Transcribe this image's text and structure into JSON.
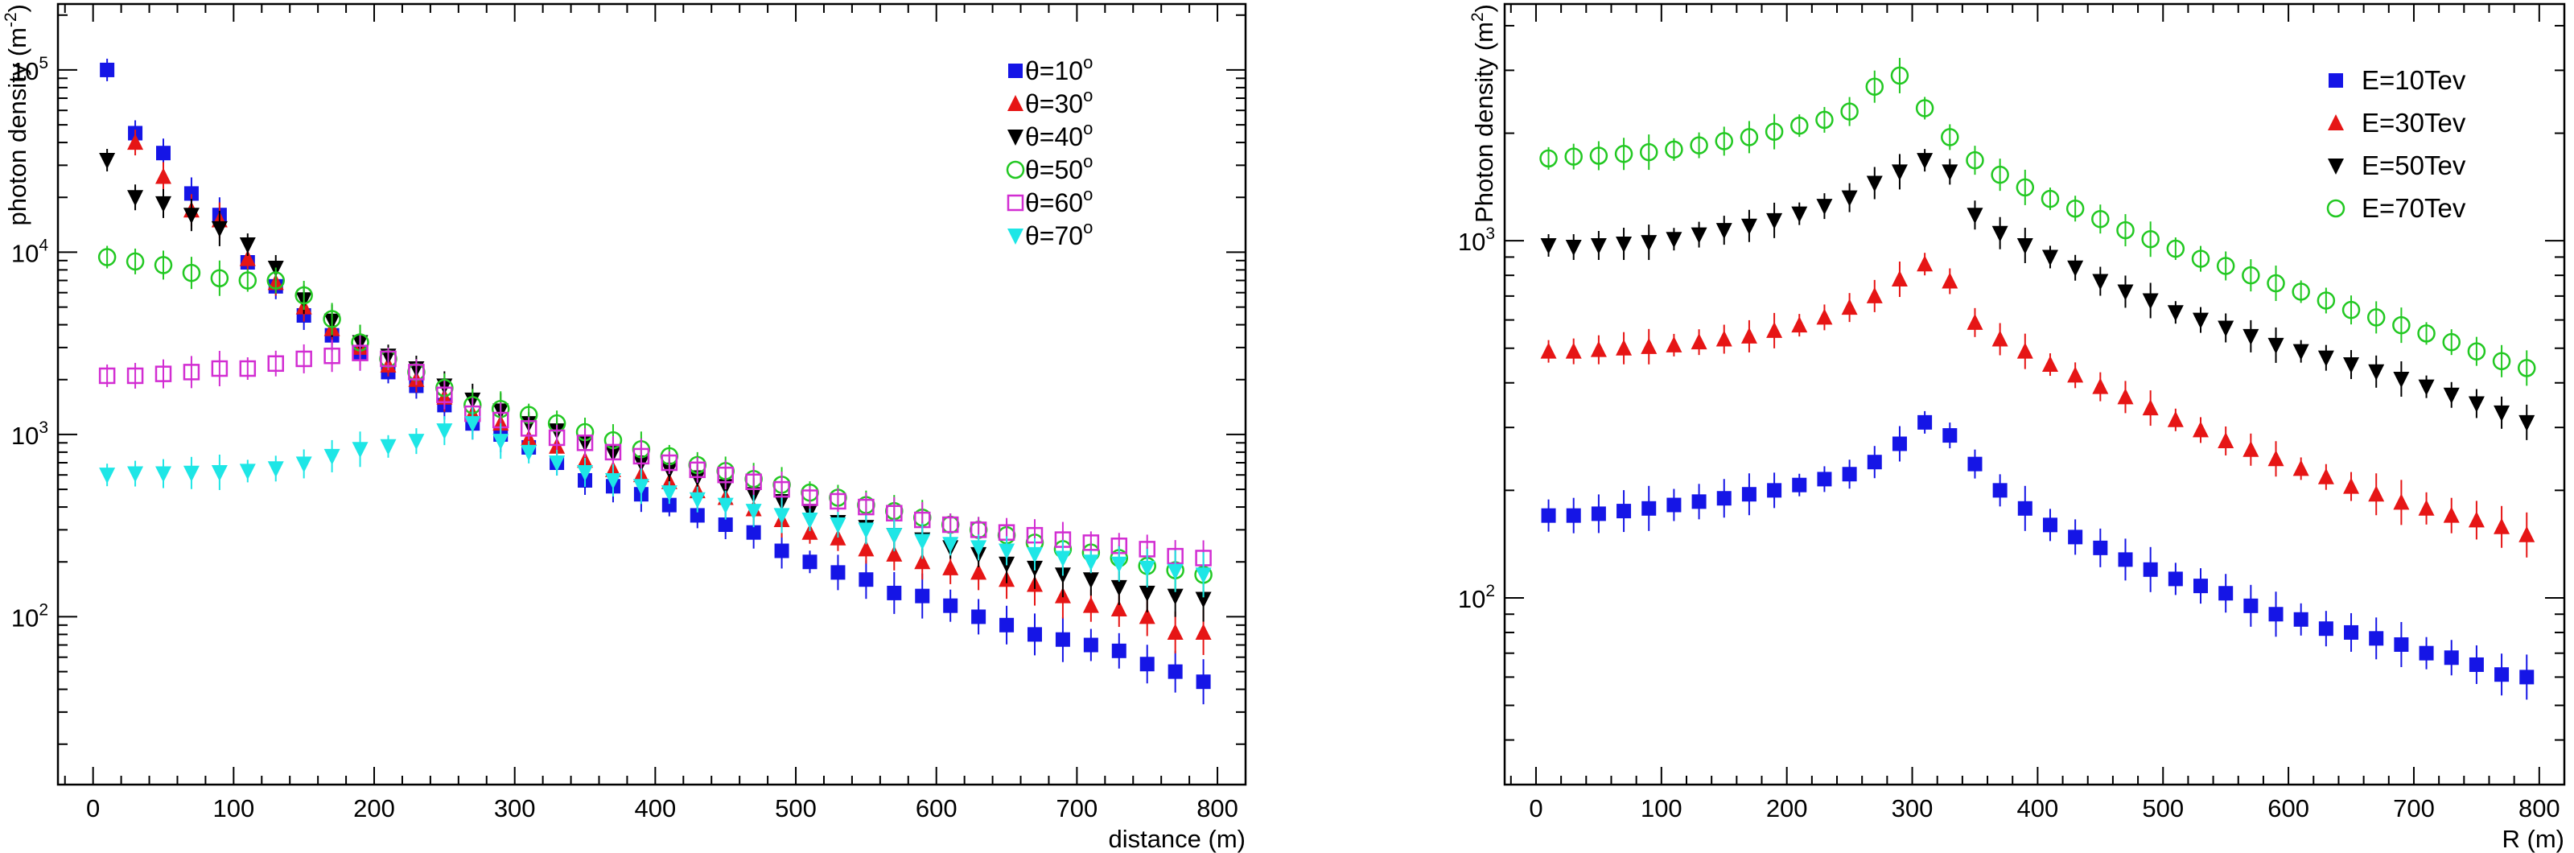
{
  "chart_data": [
    {
      "type": "scatter",
      "xlabel": "distance (m)",
      "ylabel": "photon density (m",
      "ylabel_sup": "-2",
      "ylabel_close": ")",
      "xlim": [
        -25,
        820
      ],
      "ylim": [
        12,
        230000
      ],
      "yscale": "log",
      "xticks": [
        0,
        100,
        200,
        300,
        400,
        500,
        600,
        700,
        800
      ],
      "ytick_labels": [
        {
          "base": "10",
          "exp": "2",
          "value": 100
        },
        {
          "base": "10",
          "exp": "3",
          "value": 1000
        },
        {
          "base": "10",
          "exp": "4",
          "value": 10000
        },
        {
          "base": "10",
          "exp": "5",
          "value": 100000
        }
      ],
      "legend_position": "top-right",
      "x": [
        10,
        30,
        50,
        70,
        90,
        110,
        130,
        150,
        170,
        190,
        210,
        230,
        250,
        270,
        290,
        310,
        330,
        350,
        370,
        390,
        410,
        430,
        450,
        470,
        490,
        510,
        530,
        550,
        570,
        590,
        610,
        630,
        650,
        670,
        690,
        710,
        730,
        750,
        770,
        790
      ],
      "series": [
        {
          "label_prefix": "θ=",
          "label_value": "10",
          "label_sup": "o",
          "marker": "square-filled",
          "color": "#1515e6",
          "values": [
            100000,
            45000,
            35000,
            21000,
            16000,
            8800,
            6500,
            4500,
            3500,
            2800,
            2200,
            1850,
            1450,
            1150,
            1000,
            850,
            700,
            560,
            520,
            470,
            410,
            360,
            320,
            290,
            230,
            200,
            175,
            160,
            135,
            130,
            115,
            100,
            90,
            80,
            75,
            70,
            65,
            55,
            50,
            44
          ]
        },
        {
          "label_prefix": "θ=",
          "label_value": "30",
          "label_sup": "o",
          "marker": "triangle-up-filled",
          "color": "#e61515",
          "values": [
            null,
            40000,
            26000,
            17000,
            15000,
            9200,
            6800,
            5000,
            3800,
            3000,
            2400,
            2000,
            1600,
            1300,
            1150,
            950,
            860,
            720,
            640,
            600,
            550,
            490,
            450,
            390,
            340,
            290,
            270,
            235,
            220,
            200,
            185,
            175,
            160,
            150,
            130,
            115,
            110,
            100,
            82,
            82
          ]
        },
        {
          "label_prefix": "θ=",
          "label_value": "40",
          "label_sup": "o",
          "marker": "triangle-down-filled",
          "color": "#000000",
          "values": [
            32000,
            20000,
            18500,
            16000,
            13500,
            11000,
            8200,
            5500,
            4200,
            3200,
            2700,
            2300,
            1850,
            1550,
            1350,
            1150,
            1050,
            900,
            790,
            700,
            640,
            580,
            520,
            470,
            430,
            380,
            330,
            310,
            280,
            265,
            240,
            220,
            195,
            185,
            170,
            160,
            145,
            135,
            130,
            125
          ]
        },
        {
          "label_prefix": "θ=",
          "label_value": "50",
          "label_sup": "o",
          "marker": "circle-open",
          "color": "#22c822",
          "values": [
            9400,
            8900,
            8500,
            7700,
            7200,
            7000,
            7000,
            5800,
            4300,
            3200,
            2600,
            2200,
            1800,
            1450,
            1380,
            1280,
            1150,
            1030,
            930,
            830,
            760,
            680,
            630,
            570,
            530,
            480,
            450,
            410,
            380,
            350,
            320,
            300,
            280,
            255,
            235,
            225,
            210,
            190,
            180,
            170
          ]
        },
        {
          "label_prefix": "θ=",
          "label_value": "60",
          "label_sup": "o",
          "marker": "square-open",
          "color": "#d22dd2",
          "values": [
            2100,
            2100,
            2150,
            2200,
            2300,
            2300,
            2450,
            2600,
            2700,
            2800,
            2600,
            2200,
            1650,
            1300,
            1200,
            1080,
            960,
            900,
            800,
            760,
            700,
            640,
            600,
            550,
            500,
            450,
            430,
            400,
            370,
            340,
            320,
            300,
            290,
            280,
            265,
            255,
            245,
            235,
            215,
            210
          ]
        },
        {
          "label_prefix": "θ=",
          "label_value": "70",
          "label_sup": "o",
          "marker": "triangle-down-filled",
          "color": "#1ee6e6",
          "values": [
            600,
            610,
            610,
            615,
            620,
            630,
            650,
            690,
            760,
            830,
            860,
            920,
            1050,
            1150,
            920,
            800,
            700,
            620,
            560,
            520,
            480,
            440,
            410,
            380,
            360,
            340,
            320,
            300,
            280,
            260,
            250,
            240,
            230,
            220,
            210,
            200,
            195,
            185,
            178,
            170
          ]
        }
      ]
    },
    {
      "type": "scatter",
      "xlabel": "R (m)",
      "ylabel": "Photon density (m",
      "ylabel_sup": "2",
      "ylabel_close": ")",
      "xlim": [
        -25,
        820
      ],
      "ylim": [
        30,
        4600
      ],
      "yscale": "log",
      "xticks": [
        0,
        100,
        200,
        300,
        400,
        500,
        600,
        700,
        800
      ],
      "ytick_labels": [
        {
          "base": "10",
          "exp": "2",
          "value": 100
        },
        {
          "base": "10",
          "exp": "3",
          "value": 1000
        }
      ],
      "legend_position": "top-right",
      "x": [
        10,
        30,
        50,
        70,
        90,
        110,
        130,
        150,
        170,
        190,
        210,
        230,
        250,
        270,
        290,
        310,
        330,
        350,
        370,
        390,
        410,
        430,
        450,
        470,
        490,
        510,
        530,
        550,
        570,
        590,
        610,
        630,
        650,
        670,
        690,
        710,
        730,
        750,
        770,
        790
      ],
      "series": [
        {
          "label_prefix": "E=10Tev",
          "label_value": "",
          "label_sup": "",
          "marker": "square-filled",
          "color": "#1515e6",
          "values": [
            170,
            170,
            172,
            175,
            178,
            182,
            186,
            190,
            195,
            200,
            207,
            215,
            222,
            240,
            270,
            310,
            285,
            237,
            200,
            178,
            160,
            148,
            138,
            128,
            120,
            113,
            108,
            103,
            95,
            90,
            87,
            82,
            80,
            77,
            74,
            70,
            68,
            65,
            61,
            60
          ]
        },
        {
          "label_prefix": "E=30Tev",
          "label_value": "",
          "label_sup": "",
          "marker": "triangle-up-filled",
          "color": "#e61515",
          "values": [
            490,
            490,
            495,
            500,
            505,
            510,
            520,
            530,
            540,
            560,
            580,
            610,
            650,
            700,
            780,
            860,
            770,
            590,
            530,
            490,
            450,
            420,
            390,
            365,
            340,
            315,
            295,
            275,
            260,
            245,
            230,
            218,
            205,
            195,
            185,
            178,
            170,
            165,
            158,
            150
          ]
        },
        {
          "label_prefix": "E=50Tev",
          "label_value": "",
          "label_sup": "",
          "marker": "triangle-down-filled",
          "color": "#000000",
          "values": [
            970,
            960,
            970,
            980,
            990,
            1010,
            1040,
            1070,
            1100,
            1140,
            1190,
            1250,
            1320,
            1450,
            1560,
            1680,
            1560,
            1180,
            1050,
            970,
            900,
            840,
            770,
            720,
            680,
            630,
            600,
            570,
            540,
            510,
            490,
            470,
            450,
            430,
            410,
            390,
            370,
            350,
            330,
            310
          ]
        },
        {
          "label_prefix": "E=70Tev",
          "label_value": "",
          "label_sup": "",
          "marker": "circle-open",
          "color": "#22c822",
          "values": [
            1700,
            1720,
            1730,
            1750,
            1770,
            1800,
            1850,
            1900,
            1950,
            2020,
            2100,
            2180,
            2300,
            2700,
            2900,
            2350,
            1950,
            1680,
            1530,
            1410,
            1310,
            1230,
            1150,
            1070,
            1010,
            950,
            890,
            850,
            800,
            760,
            720,
            680,
            640,
            610,
            580,
            550,
            520,
            490,
            460,
            440
          ]
        }
      ]
    }
  ]
}
